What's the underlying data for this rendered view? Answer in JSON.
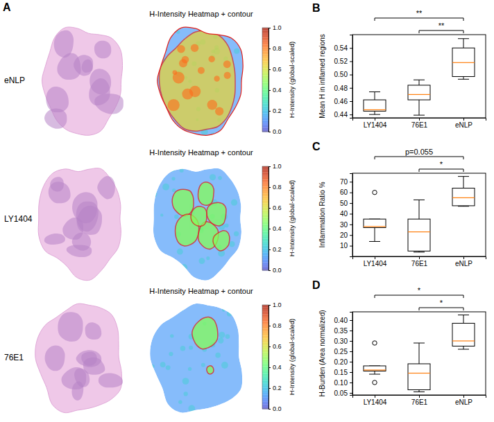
{
  "chart_data": [
    {
      "type": "image",
      "label": "A",
      "rows": [
        {
          "name": "eNLP",
          "title": "H-Intensity Heatmap + contour"
        },
        {
          "name": "LY1404",
          "title": "H-Intensity Heatmap + contour"
        },
        {
          "name": "76E1",
          "title": "H-Intensity Heatmap + contour"
        }
      ],
      "colorbar": {
        "label": "H-Intensity (global-scaled)",
        "range": [
          0,
          1
        ],
        "ticks": [
          {
            "value": 0,
            "label": "0.0"
          },
          0.2,
          0.4,
          0.6,
          0.8,
          {
            "value": 1,
            "label": "1.0"
          }
        ]
      }
    },
    {
      "type": "box",
      "label": "B",
      "categories": [
        "LY1404",
        "76E1",
        "eNLP"
      ],
      "ylabel": "Mean H in inflamed regions",
      "color": "#ff7f0e",
      "ylim": [
        0.435,
        0.56
      ],
      "yticks": [
        0.44,
        0.46,
        0.48,
        {
          "value": 0.5,
          "label": "0.50"
        },
        0.52,
        0.54
      ],
      "boxes": [
        {
          "low": 0.44,
          "q1": 0.445,
          "median": 0.447,
          "q3": 0.462,
          "high": 0.474,
          "outliers": []
        },
        {
          "low": 0.439,
          "q1": 0.462,
          "median": 0.47,
          "q3": 0.484,
          "high": 0.492,
          "outliers": []
        },
        {
          "low": 0.493,
          "q1": 0.497,
          "median": 0.518,
          "q3": 0.54,
          "high": 0.554,
          "outliers": []
        }
      ],
      "annotations": [
        {
          "text": "**",
          "from": "LY1404",
          "to": "eNLP"
        },
        {
          "text": "**",
          "from": "76E1",
          "to": "eNLP"
        }
      ]
    },
    {
      "type": "box",
      "label": "C",
      "categories": [
        "LY1404",
        "76E1",
        "eNLP"
      ],
      "ylabel": "Inflammation Ratio %",
      "color": "#ff7f0e",
      "ylim": [
        0,
        78
      ],
      "yticks": [
        10,
        20,
        30,
        40,
        50,
        60,
        70
      ],
      "boxes": [
        {
          "low": 14,
          "q1": 27,
          "median": 28,
          "q3": 35,
          "high": 35,
          "outliers": [
            60
          ]
        },
        {
          "low": 4,
          "q1": 5,
          "median": 23,
          "q3": 35,
          "high": 53,
          "outliers": []
        },
        {
          "low": 47,
          "q1": 47.5,
          "median": 55,
          "q3": 64,
          "high": 75,
          "outliers": []
        }
      ],
      "annotations": [
        {
          "text": "p=0.055",
          "from": "LY1404",
          "to": "eNLP"
        },
        {
          "text": "*",
          "from": "76E1",
          "to": "eNLP"
        }
      ]
    },
    {
      "type": "box",
      "label": "D",
      "categories": [
        "LY1404",
        "76E1",
        "eNLP"
      ],
      "ylabel": "H-Burden (Area normalized)",
      "color": "#ff7f0e",
      "ylim": [
        0.04,
        0.44
      ],
      "yticks": [
        0.05,
        {
          "value": 0.1,
          "label": "0.10"
        },
        0.15,
        {
          "value": 0.2,
          "label": "0.20"
        },
        0.25,
        {
          "value": 0.3,
          "label": "0.30"
        },
        0.35,
        {
          "value": 0.4,
          "label": "0.40"
        }
      ],
      "boxes": [
        {
          "low": 0.14,
          "q1": 0.155,
          "median": 0.16,
          "q3": 0.18,
          "high": 0.18,
          "outliers": [
            0.29,
            0.1
          ]
        },
        {
          "low": 0.055,
          "q1": 0.065,
          "median": 0.145,
          "q3": 0.19,
          "high": 0.29,
          "outliers": []
        },
        {
          "low": 0.26,
          "q1": 0.275,
          "median": 0.3,
          "q3": 0.385,
          "high": 0.425,
          "outliers": []
        }
      ],
      "annotations": [
        {
          "text": "*",
          "from": "LY1404",
          "to": "eNLP"
        },
        {
          "text": "*",
          "from": "76E1",
          "to": "eNLP"
        }
      ]
    }
  ]
}
